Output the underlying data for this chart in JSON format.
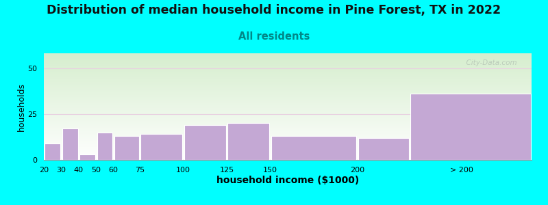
{
  "title": "Distribution of median household income in Pine Forest, TX in 2022",
  "subtitle": "All residents",
  "xlabel": "household income ($1000)",
  "ylabel": "households",
  "background_color": "#00FFFF",
  "plot_bg_top": "#d6eece",
  "plot_bg_bottom": "#ffffff",
  "bar_color": "#c4a8d4",
  "bar_edge_color": "#ffffff",
  "title_fontsize": 12.5,
  "subtitle_fontsize": 10.5,
  "subtitle_color": "#008888",
  "ylabel_fontsize": 9,
  "xlabel_fontsize": 10,
  "grid_color": "#e8d0e0",
  "watermark": "  City-Data.com",
  "bar_left_edges": [
    20,
    30,
    40,
    50,
    60,
    75,
    100,
    125,
    150,
    200,
    230
  ],
  "bar_widths": [
    10,
    10,
    10,
    10,
    15,
    25,
    25,
    25,
    50,
    30,
    70
  ],
  "bar_heights": [
    9,
    17,
    3,
    15,
    13,
    14,
    19,
    20,
    13,
    12,
    36
  ],
  "tick_positions": [
    20,
    30,
    40,
    50,
    60,
    75,
    100,
    125,
    150,
    200,
    260
  ],
  "tick_labels": [
    "20",
    "30",
    "40",
    "50",
    "60",
    "75",
    "100",
    "125",
    "150",
    "200",
    "> 200"
  ],
  "xlim": [
    20,
    300
  ],
  "ylim": [
    0,
    58
  ],
  "yticks": [
    0,
    25,
    50
  ]
}
